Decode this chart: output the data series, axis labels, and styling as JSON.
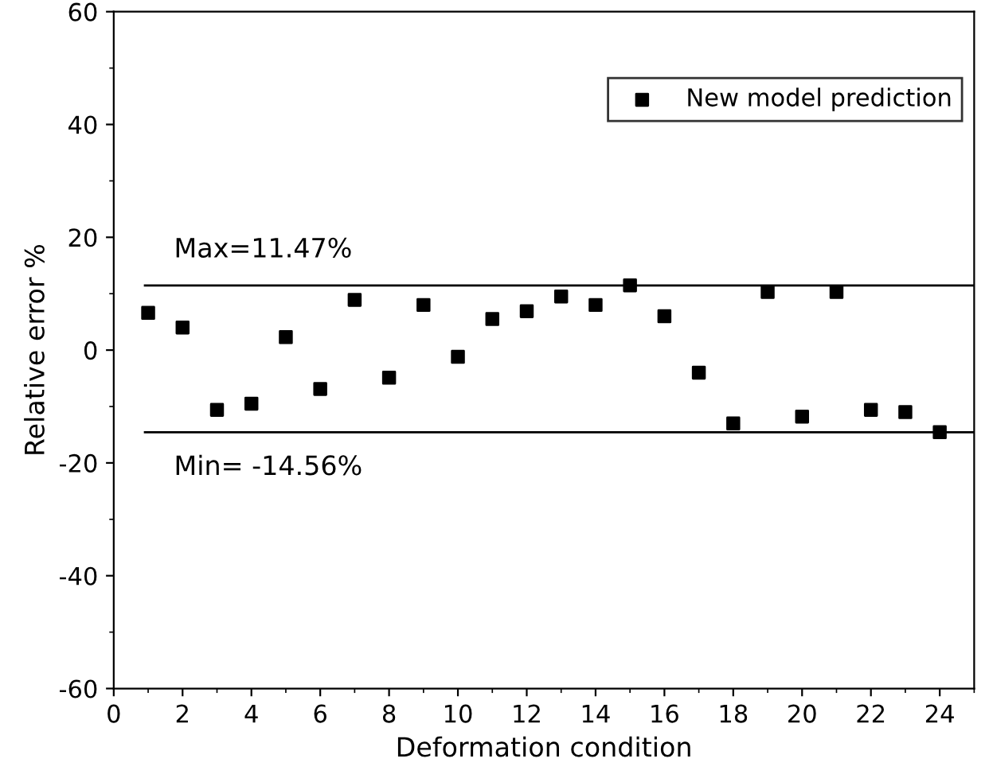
{
  "chart_data": {
    "type": "scatter",
    "xlabel": "Deformation condition",
    "ylabel": "Relative error %",
    "x": [
      1,
      2,
      3,
      4,
      5,
      6,
      7,
      8,
      9,
      10,
      11,
      12,
      13,
      14,
      15,
      16,
      17,
      18,
      19,
      20,
      21,
      22,
      23,
      24
    ],
    "series": [
      {
        "name": "New model prediction",
        "color": "#000000",
        "values": [
          6.6,
          4.0,
          -10.6,
          -9.5,
          2.3,
          -6.9,
          8.9,
          -4.9,
          8.0,
          -1.2,
          5.5,
          6.9,
          9.5,
          8.0,
          11.47,
          6.0,
          -4.0,
          -13.0,
          10.3,
          -11.8,
          10.3,
          -10.6,
          -11.0,
          -14.56
        ]
      }
    ],
    "marker": "square",
    "legend": "top right",
    "xlim": [
      0,
      25
    ],
    "xticks": [
      0,
      2,
      4,
      6,
      8,
      10,
      12,
      14,
      16,
      18,
      20,
      22,
      24
    ],
    "ylim": [
      -60,
      60
    ],
    "yticks": [
      -60,
      -40,
      -20,
      0,
      20,
      40,
      60
    ],
    "ref_lines": [
      {
        "axis": "y",
        "value": 11.47,
        "label": "Max=11.47%",
        "color": "#000000"
      },
      {
        "axis": "y",
        "value": -14.56,
        "label": "Min= -14.56%",
        "color": "#000000"
      }
    ]
  }
}
